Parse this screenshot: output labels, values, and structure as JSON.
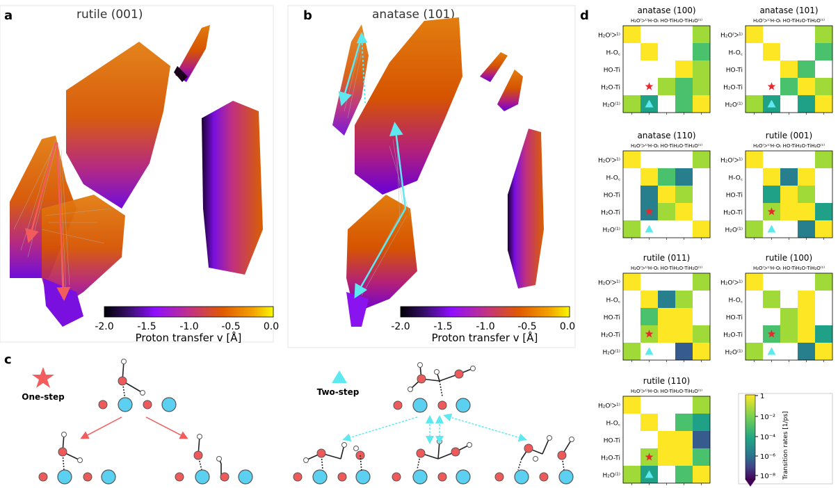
{
  "panels": {
    "a": {
      "letter": "a",
      "title": "rutile (001)"
    },
    "b": {
      "letter": "b",
      "title": "anatase (101)"
    },
    "c": {
      "letter": "c",
      "one_step_label": "One-step",
      "two_step_label": "Two-step"
    },
    "d": {
      "letter": "d"
    }
  },
  "colorbar_proton": {
    "label": "Proton transfer v [Å]",
    "ticks": [
      "-2.0",
      "-1.5",
      "-1.0",
      "-0.5",
      "0.0"
    ],
    "colors": [
      "#000004",
      "#5a00a8",
      "#8f0eff",
      "#c0318a",
      "#e05a00",
      "#f3a200",
      "#f8f800"
    ]
  },
  "colorbar_rates": {
    "label": "Transition rates [1/ps]",
    "ticks": [
      "1",
      "10⁻²",
      "10⁻⁴",
      "10⁻⁶",
      "10⁻⁸"
    ],
    "colors": [
      "#fde725",
      "#7ad151",
      "#22a884",
      "#2a788e",
      "#414487",
      "#440154"
    ]
  },
  "matrix_labels": {
    "rows": [
      "H₂O⁽ᐳ¹⁾",
      "H-O꜀",
      "HO-Ti",
      "H₂O-Ti",
      "H₂O⁽¹⁾"
    ],
    "cols": [
      "H₂O⁽ᐳ¹⁾",
      "H-O꜀",
      "HO-Ti",
      "H₂O-Ti",
      "H₂O⁽¹⁾"
    ],
    "col_header": "H₂O⁽ᐳ¹⁾H-Oₜ  HO-TiH₂O-TiH₂O⁽¹⁾"
  },
  "matrices": [
    {
      "title": "anatase (100)",
      "cells": [
        [
          0,
          null,
          null,
          null,
          1
        ],
        [
          null,
          0,
          null,
          null,
          2
        ],
        [
          null,
          null,
          null,
          0,
          1
        ],
        [
          null,
          null,
          1,
          2,
          1
        ],
        [
          1,
          3,
          null,
          2,
          0
        ]
      ]
    },
    {
      "title": "anatase (101)",
      "cells": [
        [
          0,
          null,
          null,
          null,
          1
        ],
        [
          null,
          0,
          null,
          null,
          2
        ],
        [
          null,
          null,
          0,
          2,
          null
        ],
        [
          null,
          null,
          2,
          0,
          1
        ],
        [
          1,
          3,
          null,
          3,
          0
        ]
      ]
    },
    {
      "title": "anatase (110)",
      "cells": [
        [
          0,
          null,
          null,
          null,
          1
        ],
        [
          null,
          0,
          2,
          4,
          null
        ],
        [
          null,
          4,
          0,
          1,
          null
        ],
        [
          null,
          4,
          1,
          0,
          null
        ],
        [
          1,
          null,
          null,
          null,
          0
        ]
      ]
    },
    {
      "title": "rutile (001)",
      "cells": [
        [
          0,
          null,
          null,
          null,
          1
        ],
        [
          null,
          0,
          4,
          0,
          null
        ],
        [
          null,
          3,
          0,
          1,
          null
        ],
        [
          null,
          1,
          0,
          0,
          3
        ],
        [
          1,
          null,
          null,
          4,
          0
        ]
      ]
    },
    {
      "title": "rutile (011)",
      "cells": [
        [
          0,
          null,
          null,
          null,
          1
        ],
        [
          null,
          0,
          4,
          1,
          null
        ],
        [
          null,
          2,
          0,
          0,
          null
        ],
        [
          null,
          1,
          0,
          0,
          1
        ],
        [
          1,
          null,
          null,
          5,
          0
        ]
      ]
    },
    {
      "title": "rutile (100)",
      "cells": [
        [
          0,
          null,
          null,
          null,
          1
        ],
        [
          null,
          1,
          null,
          0,
          null
        ],
        [
          null,
          null,
          1,
          0,
          null
        ],
        [
          null,
          2,
          1,
          0,
          3
        ],
        [
          1,
          null,
          null,
          4,
          0
        ]
      ]
    },
    {
      "title": "rutile (110)",
      "cells": [
        [
          0,
          null,
          null,
          null,
          1
        ],
        [
          null,
          0,
          null,
          2,
          3
        ],
        [
          null,
          null,
          0,
          0,
          5
        ],
        [
          null,
          1,
          0,
          0,
          2
        ],
        [
          1,
          3,
          null,
          2,
          0
        ]
      ]
    }
  ]
}
